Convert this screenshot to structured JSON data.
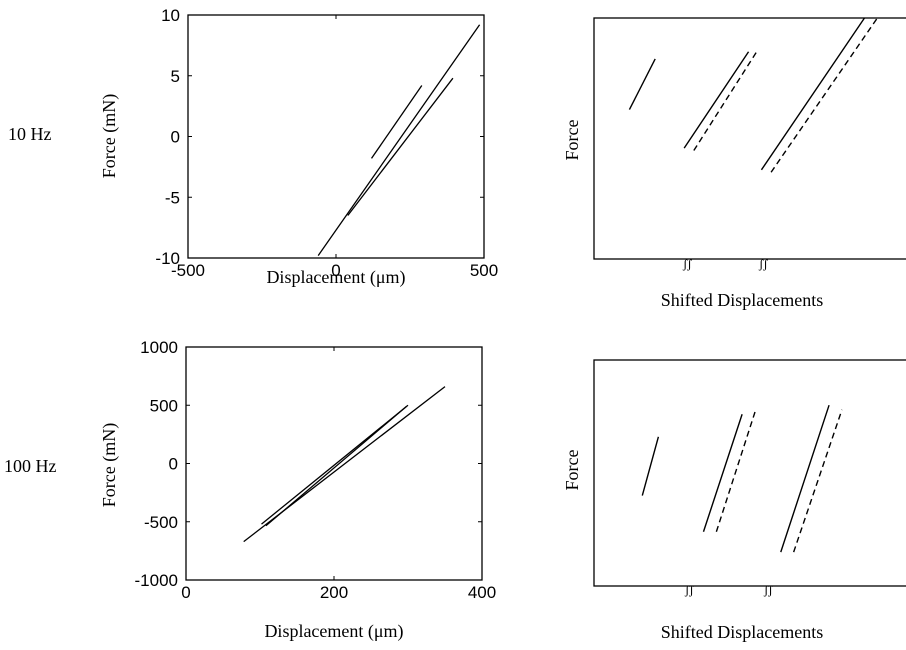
{
  "row_labels": [
    "10 Hz",
    "100 Hz"
  ],
  "break_mark": "ʃʃ",
  "chart_data": [
    {
      "type": "line",
      "xlabel": "Displacement (μm)",
      "ylabel": "Force (mN)",
      "xlim": [
        -500,
        500
      ],
      "ylim": [
        -10,
        10
      ],
      "xticks": [
        "-500",
        "0",
        "500"
      ],
      "yticks": [
        "10",
        "5",
        "0",
        "-5",
        "-10"
      ],
      "series": [
        {
          "x": [
            -60,
            485
          ],
          "y": [
            -9.8,
            9.2
          ]
        },
        {
          "x": [
            40,
            395
          ],
          "y": [
            -6.5,
            4.8
          ]
        },
        {
          "x": [
            120,
            290
          ],
          "y": [
            -1.8,
            4.2
          ]
        }
      ]
    },
    {
      "type": "line",
      "xlabel": "Shifted Displacements",
      "ylabel": "Force",
      "segments": [
        {
          "solid": [
            [
              0.11,
              0.62
            ],
            [
              0.19,
              0.83
            ]
          ]
        },
        {
          "solid": [
            [
              0.28,
              0.46
            ],
            [
              0.48,
              0.86
            ]
          ],
          "dashed": [
            [
              0.31,
              0.45
            ],
            [
              0.51,
              0.87
            ]
          ]
        },
        {
          "solid": [
            [
              0.52,
              0.37
            ],
            [
              0.84,
              1.0
            ]
          ],
          "dashed": [
            [
              0.55,
              0.36
            ],
            [
              0.88,
              1.0
            ]
          ]
        }
      ]
    },
    {
      "type": "line",
      "xlabel": "Displacement (μm)",
      "ylabel": "Force (mN)",
      "xlim": [
        0,
        400
      ],
      "ylim": [
        -1000,
        1000
      ],
      "xticks": [
        "0",
        "200",
        "400"
      ],
      "yticks": [
        "1000",
        "500",
        "0",
        "-500",
        "-1000"
      ],
      "series": [
        {
          "x": [
            78,
            350
          ],
          "y": [
            -670,
            660
          ]
        },
        {
          "x": [
            102,
            300
          ],
          "y": [
            -520,
            500
          ]
        },
        {
          "x": [
            108,
            298
          ],
          "y": [
            -535,
            490
          ]
        }
      ]
    },
    {
      "type": "line",
      "xlabel": "Shifted Displacements",
      "ylabel": "Force",
      "segments": [
        {
          "solid": [
            [
              0.15,
              0.4
            ],
            [
              0.2,
              0.66
            ]
          ]
        },
        {
          "solid": [
            [
              0.34,
              0.24
            ],
            [
              0.46,
              0.76
            ]
          ],
          "dashed": [
            [
              0.38,
              0.24
            ],
            [
              0.5,
              0.77
            ]
          ]
        },
        {
          "solid": [
            [
              0.58,
              0.15
            ],
            [
              0.73,
              0.8
            ]
          ],
          "dashed": [
            [
              0.62,
              0.15
            ],
            [
              0.77,
              0.78
            ]
          ]
        }
      ]
    }
  ]
}
